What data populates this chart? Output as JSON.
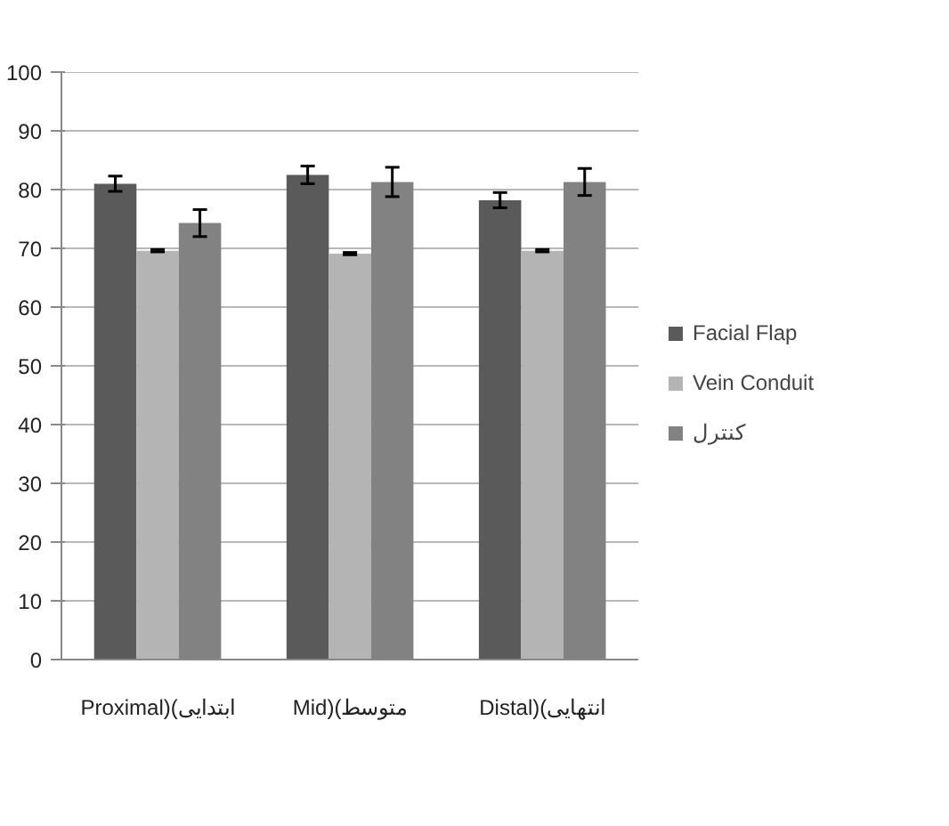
{
  "chart_data": {
    "type": "bar",
    "categories": [
      "Proximal)(ابتدایی",
      "Mid)(متوسط",
      "Distal)(انتهایی"
    ],
    "series": [
      {
        "name": "Facial Flap",
        "color": "#5a5a5a",
        "values": [
          81.0,
          82.5,
          78.2
        ],
        "errors": [
          1.3,
          1.5,
          1.3
        ]
      },
      {
        "name": "Vein Conduit",
        "color": "#b4b4b4",
        "values": [
          69.6,
          69.1,
          69.6
        ],
        "errors": [
          0.2,
          0.2,
          0.2
        ]
      },
      {
        "name": "کنترل",
        "color": "#828282",
        "values": [
          74.3,
          81.3,
          81.3
        ],
        "errors": [
          2.3,
          2.5,
          2.3
        ]
      }
    ],
    "ylim": [
      0,
      100
    ],
    "yticks": [
      0,
      10,
      20,
      30,
      40,
      50,
      60,
      70,
      80,
      90,
      100
    ],
    "grid": "y",
    "legend": "right"
  }
}
